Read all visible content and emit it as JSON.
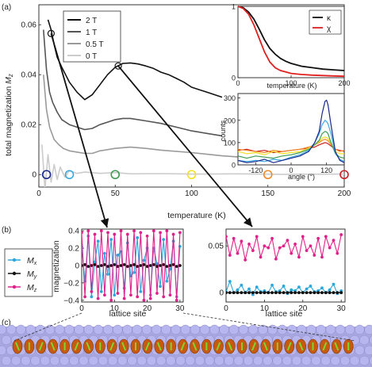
{
  "panel_labels": [
    "(a)",
    "(b)",
    "(c)"
  ],
  "chart_data": [
    {
      "type": "line",
      "panel": "a-main",
      "xlabel": "temperature (K)",
      "ylabel_main": "total magnetization ",
      "ylabel_sym": "M",
      "ylabel_sub": "z",
      "xlim": [
        0,
        200
      ],
      "ylim": [
        -0.005,
        0.068
      ],
      "xticks": [
        0,
        50,
        100,
        150,
        200
      ],
      "yticks": [
        0,
        0.02,
        0.04,
        0.06
      ],
      "ytick_labels": [
        "0",
        "0.02",
        "0.04",
        "0.06"
      ],
      "legend_position": "top-left",
      "series": [
        {
          "name": "2 T",
          "color": "#111111",
          "x": [
            6,
            8,
            10,
            12,
            15,
            20,
            25,
            30,
            35,
            40,
            45,
            50,
            55,
            60,
            65,
            70,
            75,
            80,
            85,
            90,
            95,
            100,
            110,
            120
          ],
          "y": [
            0.062,
            0.058,
            0.052,
            0.047,
            0.043,
            0.037,
            0.033,
            0.03,
            0.032,
            0.036,
            0.04,
            0.043,
            0.0445,
            0.0447,
            0.0443,
            0.0435,
            0.0425,
            0.041,
            0.04,
            0.0385,
            0.037,
            0.035,
            0.033,
            0.031
          ]
        },
        {
          "name": "1 T",
          "color": "#555555",
          "x": [
            3,
            5,
            7,
            9,
            12,
            15,
            20,
            25,
            30,
            35,
            40,
            45,
            50,
            55,
            60,
            70,
            80,
            90,
            100,
            110,
            120
          ],
          "y": [
            0.058,
            0.042,
            0.033,
            0.029,
            0.025,
            0.022,
            0.02,
            0.019,
            0.018,
            0.0185,
            0.02,
            0.021,
            0.022,
            0.0225,
            0.0225,
            0.0215,
            0.0205,
            0.019,
            0.0175,
            0.0165,
            0.0155
          ]
        },
        {
          "name": "0.5 T",
          "color": "#9a9a9a",
          "x": [
            3,
            5,
            7,
            10,
            13,
            16,
            20,
            25,
            30,
            35,
            40,
            50,
            60,
            70,
            80,
            100,
            120,
            150,
            170,
            200
          ],
          "y": [
            0.04,
            0.026,
            0.019,
            0.014,
            0.012,
            0.0105,
            0.0095,
            0.009,
            0.0085,
            0.0085,
            0.0095,
            0.0105,
            0.011,
            0.0105,
            0.0098,
            0.0088,
            0.0075,
            0.0062,
            0.0056,
            0.0052
          ]
        },
        {
          "name": "0 T",
          "color": "#cccccc",
          "x": [
            2,
            4,
            6,
            8,
            10,
            12,
            14,
            17,
            20,
            25,
            30,
            40,
            50,
            60,
            80,
            100,
            130,
            160,
            200
          ],
          "y": [
            0.012,
            -0.006,
            0.008,
            -0.003,
            0.004,
            -0.002,
            0.003,
            -0.001,
            0.0015,
            0.0005,
            0.001,
            0.0005,
            0.0008,
            0.0003,
            0.0004,
            0.0002,
            0.0003,
            0.0001,
            0.0002
          ]
        }
      ],
      "markers": [
        {
          "x": 5,
          "y": 0,
          "color": "#1a2a8c"
        },
        {
          "x": 20,
          "y": 0,
          "color": "#3aa8e0"
        },
        {
          "x": 50,
          "y": 0,
          "color": "#3f9a55"
        },
        {
          "x": 100,
          "y": 0,
          "color": "#f2e022"
        },
        {
          "x": 150,
          "y": 0,
          "color": "#ef8a2a"
        },
        {
          "x": 200,
          "y": 0,
          "color": "#cc1f1f"
        }
      ],
      "highlight_points": [
        {
          "x": 8,
          "y": 0.0565
        },
        {
          "x": 52,
          "y": 0.0435
        }
      ]
    },
    {
      "type": "line",
      "panel": "a-inset-top",
      "xlabel": "temperature (K)",
      "xlim": [
        0,
        200
      ],
      "ylim": [
        0,
        1
      ],
      "xticks": [
        0,
        100,
        200
      ],
      "yticks": [
        0,
        1
      ],
      "legend_position": "top-right",
      "series": [
        {
          "name": "κ",
          "color": "#111111",
          "x": [
            0,
            10,
            20,
            30,
            40,
            50,
            60,
            70,
            80,
            90,
            100,
            120,
            140,
            160,
            180,
            200
          ],
          "y": [
            1.0,
            0.98,
            0.92,
            0.82,
            0.68,
            0.53,
            0.41,
            0.33,
            0.27,
            0.23,
            0.2,
            0.16,
            0.14,
            0.12,
            0.11,
            0.1
          ]
        },
        {
          "name": "χ",
          "color": "#e02020",
          "x": [
            0,
            10,
            20,
            30,
            40,
            50,
            60,
            70,
            80,
            90,
            100,
            120,
            140,
            160,
            180,
            200
          ],
          "y": [
            1.0,
            0.97,
            0.89,
            0.74,
            0.55,
            0.36,
            0.22,
            0.14,
            0.1,
            0.08,
            0.06,
            0.045,
            0.035,
            0.03,
            0.025,
            0.02
          ]
        }
      ]
    },
    {
      "type": "line",
      "panel": "a-inset-bottom",
      "xlabel": "angle (°)",
      "ylabel": "counts",
      "xlim": [
        -180,
        180
      ],
      "ylim": [
        0,
        320
      ],
      "xticks": [
        -120,
        0,
        120
      ],
      "yticks": [
        0,
        100,
        200,
        300
      ],
      "series": [
        {
          "color": "#1a2a8c",
          "x": [
            -180,
            -150,
            -120,
            -90,
            -60,
            -30,
            0,
            30,
            60,
            80,
            95,
            105,
            115,
            120,
            125,
            135,
            150,
            165,
            180
          ],
          "y": [
            20,
            10,
            15,
            25,
            10,
            20,
            30,
            40,
            60,
            100,
            150,
            230,
            285,
            290,
            270,
            180,
            60,
            20,
            10
          ]
        },
        {
          "color": "#3aa8e0",
          "x": [
            -180,
            -150,
            -120,
            -90,
            -60,
            -30,
            0,
            30,
            60,
            80,
            95,
            105,
            115,
            120,
            125,
            135,
            150,
            165,
            180
          ],
          "y": [
            20,
            15,
            20,
            15,
            25,
            20,
            35,
            45,
            65,
            100,
            140,
            180,
            200,
            195,
            185,
            140,
            50,
            25,
            15
          ]
        },
        {
          "color": "#3f9a55",
          "x": [
            -180,
            -150,
            -120,
            -90,
            -60,
            -30,
            0,
            30,
            60,
            80,
            95,
            105,
            115,
            120,
            125,
            135,
            150,
            165,
            180
          ],
          "y": [
            40,
            30,
            40,
            35,
            30,
            40,
            45,
            55,
            70,
            90,
            110,
            140,
            150,
            148,
            140,
            100,
            50,
            35,
            30
          ]
        },
        {
          "color": "#f2e022",
          "x": [
            -180,
            -150,
            -120,
            -90,
            -60,
            -30,
            0,
            30,
            60,
            80,
            95,
            105,
            115,
            120,
            125,
            135,
            150,
            165,
            180
          ],
          "y": [
            60,
            50,
            55,
            45,
            60,
            50,
            55,
            60,
            75,
            90,
            105,
            120,
            125,
            122,
            118,
            95,
            60,
            50,
            50
          ]
        },
        {
          "color": "#ef8a2a",
          "x": [
            -180,
            -150,
            -120,
            -90,
            -60,
            -30,
            0,
            30,
            60,
            80,
            95,
            105,
            115,
            120,
            125,
            135,
            150,
            165,
            180
          ],
          "y": [
            70,
            65,
            60,
            55,
            65,
            60,
            65,
            70,
            80,
            90,
            100,
            110,
            115,
            112,
            108,
            90,
            70,
            60,
            65
          ]
        },
        {
          "color": "#cc1f1f",
          "x": [
            -180,
            -150,
            -120,
            -90,
            -60,
            -30,
            0,
            30,
            60,
            80,
            95,
            105,
            115,
            120,
            125,
            135,
            150,
            165,
            180
          ],
          "y": [
            65,
            70,
            60,
            65,
            55,
            60,
            65,
            70,
            75,
            80,
            90,
            95,
            100,
            98,
            95,
            85,
            70,
            65,
            60
          ]
        }
      ]
    },
    {
      "type": "line",
      "panel": "b-left",
      "xlabel": "lattice site",
      "ylabel": "magnetization",
      "xlim": [
        0,
        31
      ],
      "ylim": [
        -0.42,
        0.42
      ],
      "xticks": [
        0,
        10,
        20,
        30
      ],
      "yticks": [
        -0.4,
        -0.2,
        0,
        0.2,
        0.4
      ],
      "ytick_labels": [
        "−0.4",
        "−0.2",
        "0",
        "0.2",
        "0.4"
      ],
      "legend_labels": {
        "mx": "M",
        "mx_sub": "x",
        "my": "M",
        "my_sub": "y",
        "mz": "M",
        "mz_sub": "z"
      },
      "series": [
        {
          "name_sym": "M",
          "name_sub": "x",
          "color": "#2aa8dc",
          "y": [
            0.22,
            -0.18,
            0.34,
            -0.36,
            0.04,
            0.28,
            -0.3,
            0.14,
            -0.1,
            0.3,
            -0.34,
            0.12,
            0.16,
            -0.26,
            0.26,
            -0.12,
            -0.08,
            0.32,
            -0.3,
            0.06,
            0.2,
            -0.34,
            0.2,
            0.02,
            -0.24,
            0.3,
            -0.18,
            -0.04,
            0.28,
            -0.36,
            0.22
          ]
        },
        {
          "name_sym": "M",
          "name_sub": "y",
          "color": "#111111",
          "y": [
            0,
            0.01,
            -0.01,
            0,
            0.01,
            -0.01,
            0,
            0.01,
            -0.01,
            0,
            0.01,
            -0.01,
            0,
            0.01,
            -0.01,
            0,
            0.01,
            -0.01,
            0,
            0.01,
            -0.01,
            0,
            0.01,
            -0.01,
            0,
            0.01,
            -0.01,
            0,
            0.01,
            -0.01,
            0
          ]
        },
        {
          "name_sym": "M",
          "name_sub": "z",
          "color": "#e0208a",
          "y": [
            0.38,
            -0.36,
            0.4,
            -0.3,
            0.36,
            -0.38,
            0.4,
            -0.34,
            0.38,
            -0.4,
            0.36,
            -0.32,
            0.4,
            -0.38,
            0.36,
            -0.34,
            0.4,
            -0.36,
            0.38,
            -0.4,
            0.34,
            -0.38,
            0.4,
            -0.32,
            0.38,
            -0.36,
            0.4,
            -0.34,
            0.36,
            -0.4,
            0.38
          ]
        }
      ]
    },
    {
      "type": "line",
      "panel": "b-right",
      "xlabel": "lattice site",
      "xlim": [
        0,
        31
      ],
      "ylim": [
        -0.01,
        0.068
      ],
      "xticks": [
        0,
        10,
        20,
        30
      ],
      "yticks": [
        0,
        0.05
      ],
      "ytick_labels": [
        "0",
        "0.05"
      ],
      "series": [
        {
          "name_sym": "M",
          "name_sub": "x",
          "color": "#2aa8dc",
          "y": [
            0.001,
            0.012,
            0.0,
            0.003,
            0.008,
            0.0,
            0.004,
            -0.002,
            0.006,
            0.001,
            0.002,
            0.0,
            0.008,
            0.001,
            0.002,
            0.007,
            -0.001,
            0.003,
            0.002,
            0.006,
            0.0,
            0.004,
            0.007,
            0.001,
            0.002,
            0.005,
            0.0,
            0.003,
            0.009,
            -0.001,
            0.002
          ]
        },
        {
          "name_sym": "M",
          "name_sub": "y",
          "color": "#111111",
          "y": [
            0,
            0,
            0,
            0,
            0,
            0,
            0,
            0,
            0,
            0,
            0,
            0,
            0,
            0,
            0,
            0,
            0,
            0,
            0,
            0,
            0,
            0,
            0,
            0,
            0,
            0,
            0,
            0,
            0,
            0,
            0
          ]
        },
        {
          "name_sym": "M",
          "name_sub": "z",
          "color": "#e0208a",
          "y": [
            0.06,
            0.04,
            0.058,
            0.042,
            0.055,
            0.035,
            0.052,
            0.045,
            0.06,
            0.038,
            0.05,
            0.048,
            0.058,
            0.036,
            0.048,
            0.05,
            0.056,
            0.042,
            0.052,
            0.038,
            0.06,
            0.045,
            0.05,
            0.04,
            0.058,
            0.038,
            0.06,
            0.048,
            0.056,
            0.042,
            0.062
          ]
        }
      ]
    }
  ],
  "lattice_chain": {
    "n_atoms": 29,
    "substrate_color": "#a9a7e0",
    "atom_color": "#c85a10",
    "arrow_color": "#7fd430"
  }
}
